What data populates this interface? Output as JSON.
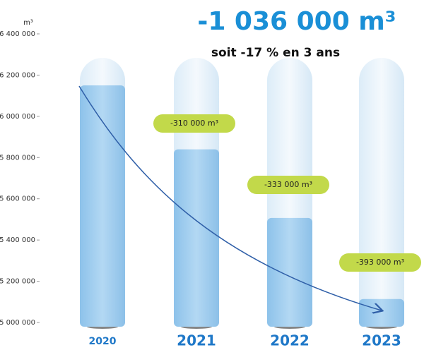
{
  "chart_data": {
    "type": "bar",
    "title": "-1 036 000 m³",
    "subtitle": "soit -17 % en 3 ans",
    "y_label": "m³",
    "categories": [
      "2020",
      "2021",
      "2022",
      "2023"
    ],
    "values": [
      6150000,
      5840000,
      5507000,
      5114000
    ],
    "color": "#9ccbec",
    "annotations": [
      "-310 000 m³",
      "-333 000 m³",
      "-393 000 m³"
    ],
    "ylim": [
      5000000,
      6400000
    ],
    "yticks": [
      {
        "value": 5000000,
        "label": "5 000 000"
      },
      {
        "value": 5200000,
        "label": "5 200 000"
      },
      {
        "value": 5400000,
        "label": "5 400 000"
      },
      {
        "value": 5600000,
        "label": "5 600 000"
      },
      {
        "value": 5800000,
        "label": "5 800 000"
      },
      {
        "value": 6000000,
        "label": "6 000 000"
      },
      {
        "value": 6200000,
        "label": "6 200 000"
      },
      {
        "value": 6400000,
        "label": "6 400 000"
      }
    ]
  }
}
